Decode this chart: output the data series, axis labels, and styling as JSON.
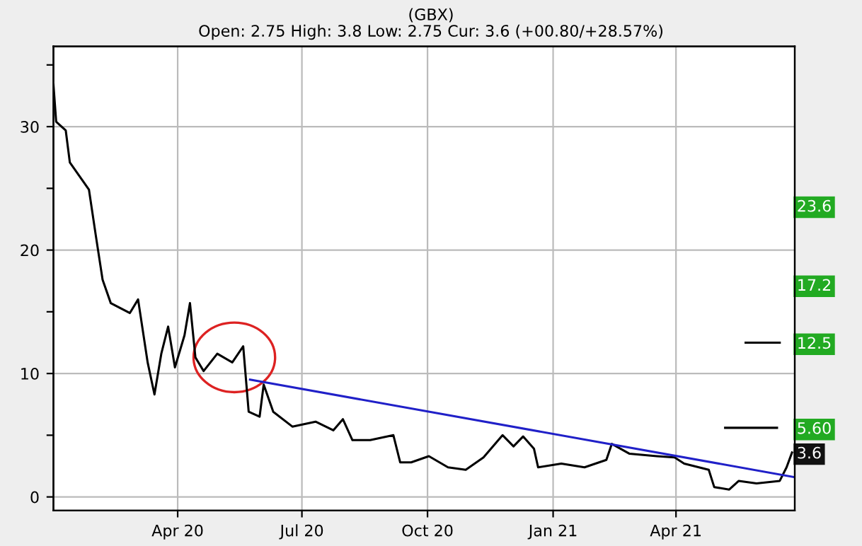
{
  "chart_data": {
    "type": "line",
    "title": "(GBX)",
    "subtitle": "Open: 2.75 High: 3.8 Low: 2.75 Cur: 3.6 (+00.80/+28.57%)",
    "series": [
      {
        "color": "#000000",
        "x": [
          "2020-01-01",
          "2020-01-03",
          "2020-01-10",
          "2020-01-13",
          "2020-01-20",
          "2020-01-27",
          "2020-02-01",
          "2020-02-06",
          "2020-02-12",
          "2020-02-26",
          "2020-03-03",
          "2020-03-10",
          "2020-03-15",
          "2020-03-20",
          "2020-03-25",
          "2020-03-30",
          "2020-04-06",
          "2020-04-10",
          "2020-04-14",
          "2020-04-20",
          "2020-04-30",
          "2020-05-11",
          "2020-05-19",
          "2020-05-23",
          "2020-05-31",
          "2020-06-03",
          "2020-06-10",
          "2020-06-24",
          "2020-07-11",
          "2020-07-24",
          "2020-07-31",
          "2020-08-07",
          "2020-08-20",
          "2020-09-06",
          "2020-09-11",
          "2020-09-19",
          "2020-10-02",
          "2020-10-16",
          "2020-10-29",
          "2020-11-11",
          "2020-11-25",
          "2020-12-03",
          "2020-12-10",
          "2020-12-18",
          "2020-12-21",
          "2021-01-07",
          "2021-01-24",
          "2021-02-09",
          "2021-02-13",
          "2021-02-26",
          "2021-03-18",
          "2021-03-31",
          "2021-04-07",
          "2021-04-25",
          "2021-04-29",
          "2021-05-10",
          "2021-05-17",
          "2021-05-30",
          "2021-06-16",
          "2021-06-21",
          "2021-06-25"
        ],
        "values": [
          33.4,
          30.4,
          29.7,
          27.1,
          26,
          24.9,
          21.2,
          17.6,
          15.7,
          14.9,
          16,
          10.9,
          8.3,
          11.6,
          13.8,
          10.5,
          13.1,
          15.7,
          11.3,
          10.2,
          11.6,
          10.9,
          12.2,
          6.9,
          6.5,
          9.1,
          6.9,
          5.7,
          6.1,
          5.4,
          6.3,
          4.6,
          4.6,
          5.0,
          2.8,
          2.8,
          3.3,
          2.4,
          2.2,
          3.2,
          5.0,
          4.1,
          4.9,
          3.9,
          2.4,
          2.7,
          2.4,
          3.0,
          4.3,
          3.5,
          3.3,
          3.2,
          2.7,
          2.2,
          0.8,
          0.6,
          1.3,
          1.1,
          1.3,
          2.4,
          3.6
        ]
      },
      {
        "color": "#2020c8",
        "x": [
          "2020-05-24",
          "2021-06-27"
        ],
        "values": [
          9.5,
          1.6
        ]
      },
      {
        "color": "#000000",
        "x": [
          "2021-05-22",
          "2021-06-16"
        ],
        "values": [
          12.5,
          12.5
        ]
      },
      {
        "color": "#000000",
        "x": [
          "2021-05-07",
          "2021-06-14"
        ],
        "values": [
          5.6,
          5.6
        ]
      }
    ],
    "xlim": [
      "2020-01-01",
      "2021-06-27"
    ],
    "xticks": [
      {
        "value": "2020-04-01",
        "label": "Apr 20"
      },
      {
        "value": "2020-07-01",
        "label": "Jul 20"
      },
      {
        "value": "2020-10-01",
        "label": "Oct 20"
      },
      {
        "value": "2021-01-01",
        "label": "Jan 21"
      },
      {
        "value": "2021-04-01",
        "label": "Apr 21"
      }
    ],
    "ylim": [
      -1.1,
      36.5
    ],
    "yticks": [
      0,
      {
        "value": 5,
        "label": null
      },
      10,
      {
        "value": 15,
        "label": null
      },
      20,
      {
        "value": 25,
        "label": null
      },
      30,
      {
        "value": 35,
        "label": null
      }
    ],
    "grid": true,
    "marker": "none",
    "line_style": "solid",
    "y2lim": [
      -1.1,
      36.5
    ],
    "y2ticks": [
      23.6,
      17.2,
      12.5,
      {
        "value": 5.6,
        "label": "5.60"
      },
      3.6
    ]
  }
}
